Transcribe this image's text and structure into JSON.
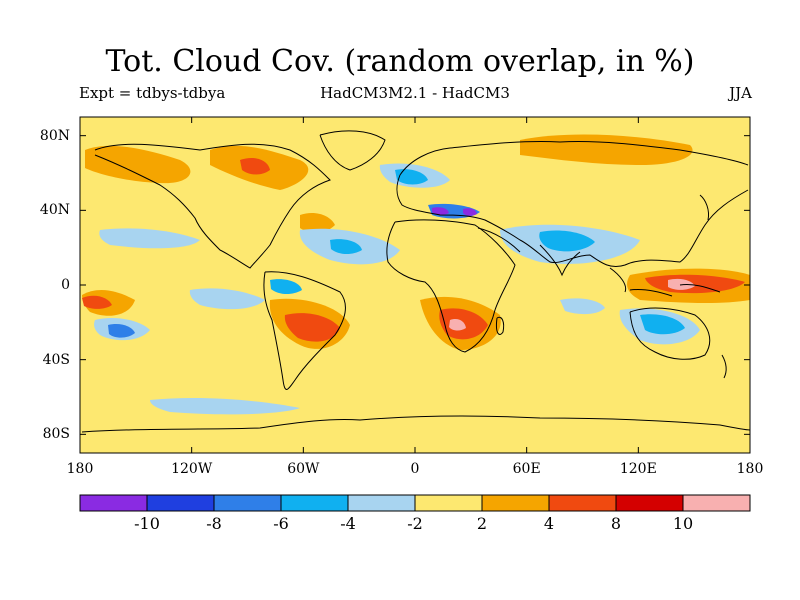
{
  "header": {
    "title": "Tot. Cloud Cov. (random overlap, in %)",
    "experiment": "Expt = tdbys-tdbya",
    "comparison": "HadCM3M2.1 - HadCM3",
    "season": "JJA"
  },
  "axes": {
    "lat_ticks": [
      {
        "label": "80N",
        "lat": 80
      },
      {
        "label": "40N",
        "lat": 40
      },
      {
        "label": "0",
        "lat": 0
      },
      {
        "label": "40S",
        "lat": -40
      },
      {
        "label": "80S",
        "lat": -80
      }
    ],
    "lon_ticks": [
      {
        "label": "180",
        "lon": -180
      },
      {
        "label": "120W",
        "lon": -120
      },
      {
        "label": "60W",
        "lon": -60
      },
      {
        "label": "0",
        "lon": 0
      },
      {
        "label": "60E",
        "lon": 60
      },
      {
        "label": "120E",
        "lon": 120
      },
      {
        "label": "180",
        "lon": 180
      }
    ],
    "lon_range": [
      -180,
      180
    ],
    "lat_range": [
      -90,
      90
    ]
  },
  "colorbar": {
    "colors": [
      "#8a2be2",
      "#1f3fe0",
      "#2f7fe8",
      "#10b0f0",
      "#a8d4f0",
      "#fde870",
      "#f5a500",
      "#f04a10",
      "#d40000",
      "#f8b0b0"
    ],
    "labels": [
      "-10",
      "-8",
      "-6",
      "-4",
      "-2",
      "2",
      "4",
      "8",
      "10"
    ]
  },
  "colors": {
    "background_band": "#fde870",
    "coastline": "#000000"
  }
}
